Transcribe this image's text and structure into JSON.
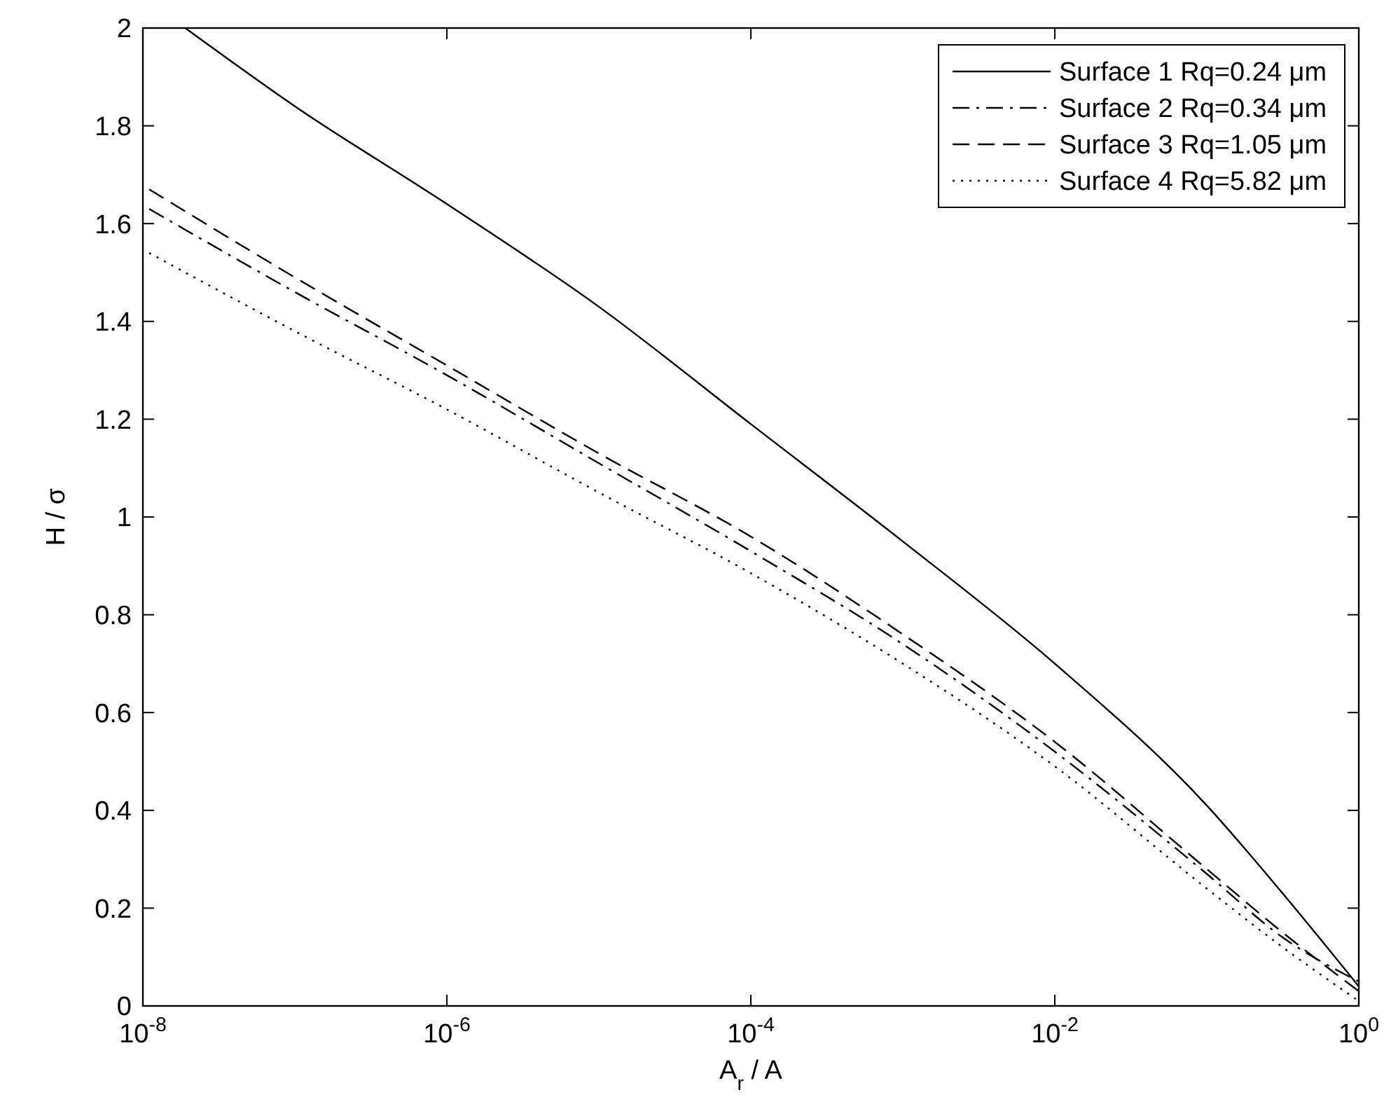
{
  "chart_data": {
    "type": "line",
    "xlabel": "A$_{r}$ / A",
    "ylabel": "H / σ",
    "log": "x",
    "grid": false,
    "legend": "top right",
    "xlim": [
      1e-08,
      1
    ],
    "ylim": [
      0,
      2
    ],
    "xticks": [
      {
        "value": 1e-08,
        "label": "10$^{-8}$"
      },
      {
        "value": 1e-06,
        "label": "10$^{-6}$"
      },
      {
        "value": 0.0001,
        "label": "10$^{-4}$"
      },
      {
        "value": 0.01,
        "label": "10$^{-2}$"
      },
      {
        "value": 1,
        "label": "10$^{0}$"
      }
    ],
    "yticks": [
      0,
      0.2,
      0.4,
      0.6,
      0.8,
      1,
      1.2,
      1.4,
      1.6,
      1.8,
      2
    ],
    "series": [
      {
        "name": "Surface 1 Rq=0.24 μm",
        "color": "#000000",
        "line_style": "solid",
        "x": [
          1.9e-08,
          1e-07,
          1e-06,
          1e-05,
          0.0001,
          0.001,
          0.01,
          0.1,
          0.316,
          1
        ],
        "values": [
          2,
          1.84,
          1.64,
          1.43,
          1.19,
          0.95,
          0.7,
          0.41,
          0.23,
          0.04
        ]
      },
      {
        "name": "Surface 2 Rq=0.34 μm",
        "color": "#000000",
        "line_style": "dashdot",
        "x": [
          1.1e-08,
          1e-07,
          1e-06,
          1e-05,
          0.0001,
          0.001,
          0.01,
          0.1,
          0.316,
          1
        ],
        "values": [
          1.63,
          1.46,
          1.29,
          1.11,
          0.93,
          0.74,
          0.52,
          0.27,
          0.14,
          0.05
        ]
      },
      {
        "name": "Surface 3 Rq=1.05 μm",
        "color": "#000000",
        "line_style": "dashed",
        "x": [
          1.1e-08,
          1e-07,
          1e-06,
          1e-05,
          0.0001,
          0.001,
          0.01,
          0.1,
          0.316,
          1
        ],
        "values": [
          1.67,
          1.49,
          1.31,
          1.13,
          0.96,
          0.76,
          0.54,
          0.28,
          0.15,
          0.03
        ]
      },
      {
        "name": "Surface 4 Rq=5.82 μm",
        "color": "#000000",
        "line_style": "dotted",
        "x": [
          1.1e-08,
          1e-07,
          1e-06,
          1e-05,
          0.0001,
          0.001,
          0.01,
          0.1,
          0.316,
          1
        ],
        "values": [
          1.54,
          1.38,
          1.22,
          1.05,
          0.885,
          0.7,
          0.49,
          0.24,
          0.12,
          0.01
        ]
      }
    ]
  }
}
